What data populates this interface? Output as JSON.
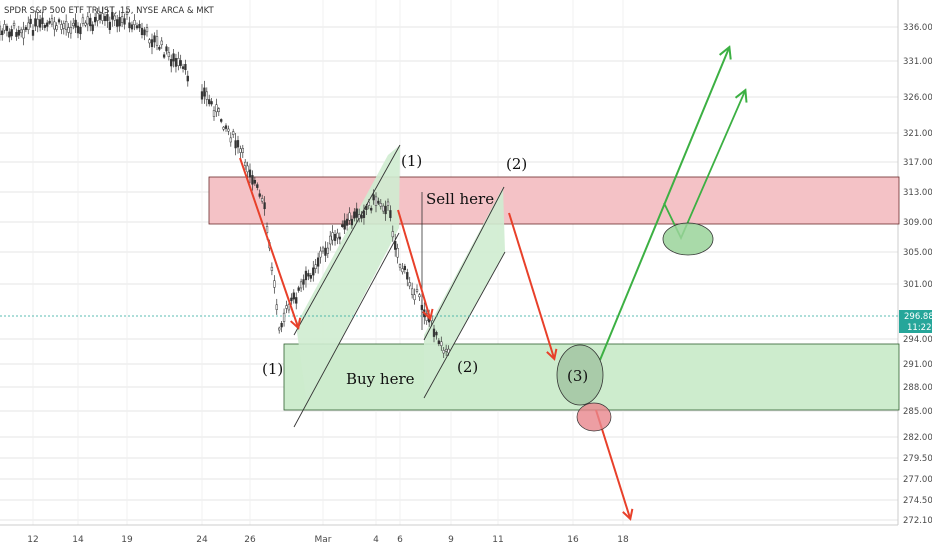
{
  "chart_title": "SPDR S&P 500 ETF TRUST, 15, NYSE ARCA & MKT",
  "price_label": {
    "value": "296.88",
    "color": "#26a69a"
  },
  "time_label": "11:22",
  "colors": {
    "sell_zone_fill": "#f4c2c6",
    "sell_zone_stroke": "#6b2a2a",
    "buy_zone_fill": "#cdeccd",
    "buy_zone_stroke": "#2f5f2f",
    "channel_fill": "#cfecd0",
    "red_arrow": "#e8402a",
    "green_arrow": "#3cb043",
    "candle": "#333333",
    "grid": "#e6e6e6",
    "axis_text": "#4a4a4a"
  },
  "chart_data": {
    "type": "candlestick",
    "title": "SPDR S&P 500 ETF TRUST, 15, NYSE ARCA & MKT",
    "y_axis": {
      "ticks": [
        "336.00",
        "331.00",
        "326.00",
        "321.00",
        "317.00",
        "313.00",
        "309.00",
        "305.00",
        "301.00",
        "294.00",
        "291.00",
        "288.00",
        "285.00",
        "282.00",
        "279.50",
        "277.00",
        "274.50",
        "272.10"
      ],
      "range": [
        271.5,
        337.5
      ]
    },
    "x_axis": {
      "ticks": [
        "12",
        "14",
        "19",
        "24",
        "26",
        "Mar",
        "4",
        "6",
        "9",
        "11",
        "16",
        "18"
      ],
      "dates": [
        "2020-02-12",
        "2020-02-14",
        "2020-02-19",
        "2020-02-24",
        "2020-02-26",
        "2020-03-02",
        "2020-03-04",
        "2020-03-06",
        "2020-03-09",
        "2020-03-11",
        "2020-03-16",
        "2020-03-18"
      ]
    },
    "price_path": [
      [
        "2020-02-10",
        335.2
      ],
      [
        "2020-02-12",
        336.0
      ],
      [
        "2020-02-14",
        336.3
      ],
      [
        "2020-02-17",
        336.9
      ],
      [
        "2020-02-19",
        337.3
      ],
      [
        "2020-02-20",
        335.5
      ],
      [
        "2020-02-21",
        333.6
      ],
      [
        "2020-02-24",
        327.0
      ],
      [
        "2020-02-25",
        322.0
      ],
      [
        "2020-02-26",
        316.0
      ],
      [
        "2020-02-27",
        310.5
      ],
      [
        "2020-02-28",
        296.0
      ],
      [
        "2020-03-02",
        305.0
      ],
      [
        "2020-03-03",
        309.0
      ],
      [
        "2020-03-04",
        312.0
      ],
      [
        "2020-03-05",
        311.0
      ],
      [
        "2020-03-06",
        303.5
      ],
      [
        "2020-03-09",
        291.5
      ]
    ],
    "zones": [
      {
        "name": "sell",
        "label": "Sell here",
        "from": 308.8,
        "to": 314.9
      },
      {
        "name": "buy",
        "label": "Buy here",
        "from": 285.0,
        "to": 293.3
      }
    ]
  },
  "annotations": {
    "sell_here": "Sell here",
    "buy_here": "Buy here",
    "label_1_top": "(1)",
    "label_2_top": "(2)",
    "label_1_left": "(1)",
    "label_2_bottom": "(2)",
    "label_3": "(3)"
  }
}
